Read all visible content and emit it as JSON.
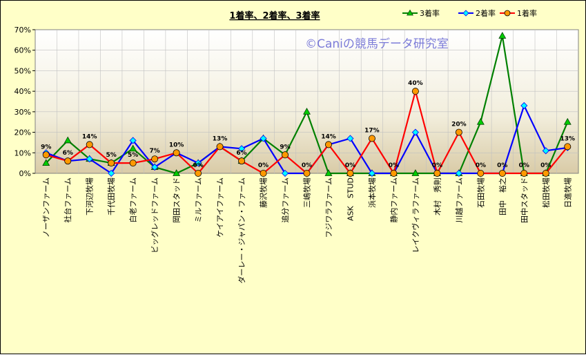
{
  "chart_data": {
    "type": "line",
    "title": "1着率、2着率、3着率",
    "watermark": "©Caniの競馬データ研究室",
    "ylim": [
      0,
      70
    ],
    "yticks": [
      "0%",
      "10%",
      "20%",
      "30%",
      "40%",
      "50%",
      "60%",
      "70%"
    ],
    "legend_position": "top-right",
    "grid": true,
    "categories": [
      "ノーザンファーム",
      "社台ファーム",
      "下河辺牧場",
      "千代田牧場",
      "白老ファーム",
      "ビッグレッドファーム",
      "岡田スタッド",
      "ミルファーム",
      "ケイアイファーム",
      "ダーレー・ジャパン・ファーム",
      "藤沢牧場",
      "追分ファーム",
      "三嶋牧場",
      "フジワラファーム",
      "ASK　STUD",
      "浜本牧場",
      "静内ファーム",
      "レイクヴィラファーム",
      "木村　秀則",
      "川越ファーム",
      "石田牧場",
      "田中　裕之",
      "田中スタッド",
      "松田牧場",
      "日進牧場"
    ],
    "series": [
      {
        "name": "3着率",
        "color": "#008000",
        "marker": "triangle",
        "marker_fill": "#00CC00",
        "values": [
          5,
          16,
          7,
          5,
          12,
          3,
          0,
          5,
          13,
          6,
          17,
          9,
          30,
          0,
          0,
          0,
          0,
          0,
          0,
          0,
          25,
          67,
          0,
          0,
          25
        ]
      },
      {
        "name": "2着率",
        "color": "#0000FF",
        "marker": "diamond",
        "marker_fill": "#00FFFF",
        "values": [
          10,
          6,
          7,
          0,
          16,
          3,
          10,
          5,
          13,
          12,
          17,
          0,
          0,
          14,
          17,
          0,
          0,
          20,
          0,
          0,
          0,
          0,
          33,
          11,
          12.5
        ]
      },
      {
        "name": "1着率",
        "color": "#FF0000",
        "marker": "circle",
        "marker_fill": "#FF9900",
        "values": [
          9,
          6,
          14,
          5,
          5,
          7,
          10,
          0,
          13,
          6,
          0,
          9,
          0,
          14,
          0,
          17,
          0,
          40,
          0,
          20,
          0,
          0,
          0,
          0,
          13
        ]
      }
    ],
    "data_labels": [
      "9%",
      "6%",
      "14%",
      "5%",
      "5%",
      "7%",
      "10%",
      "0%",
      "13%",
      "6%",
      "0%",
      "9%",
      "0%",
      "14%",
      "0%",
      "17%",
      "0%",
      "40%",
      "0%",
      "20%",
      "0%",
      "0%",
      "0%",
      "0%",
      "13%"
    ]
  }
}
